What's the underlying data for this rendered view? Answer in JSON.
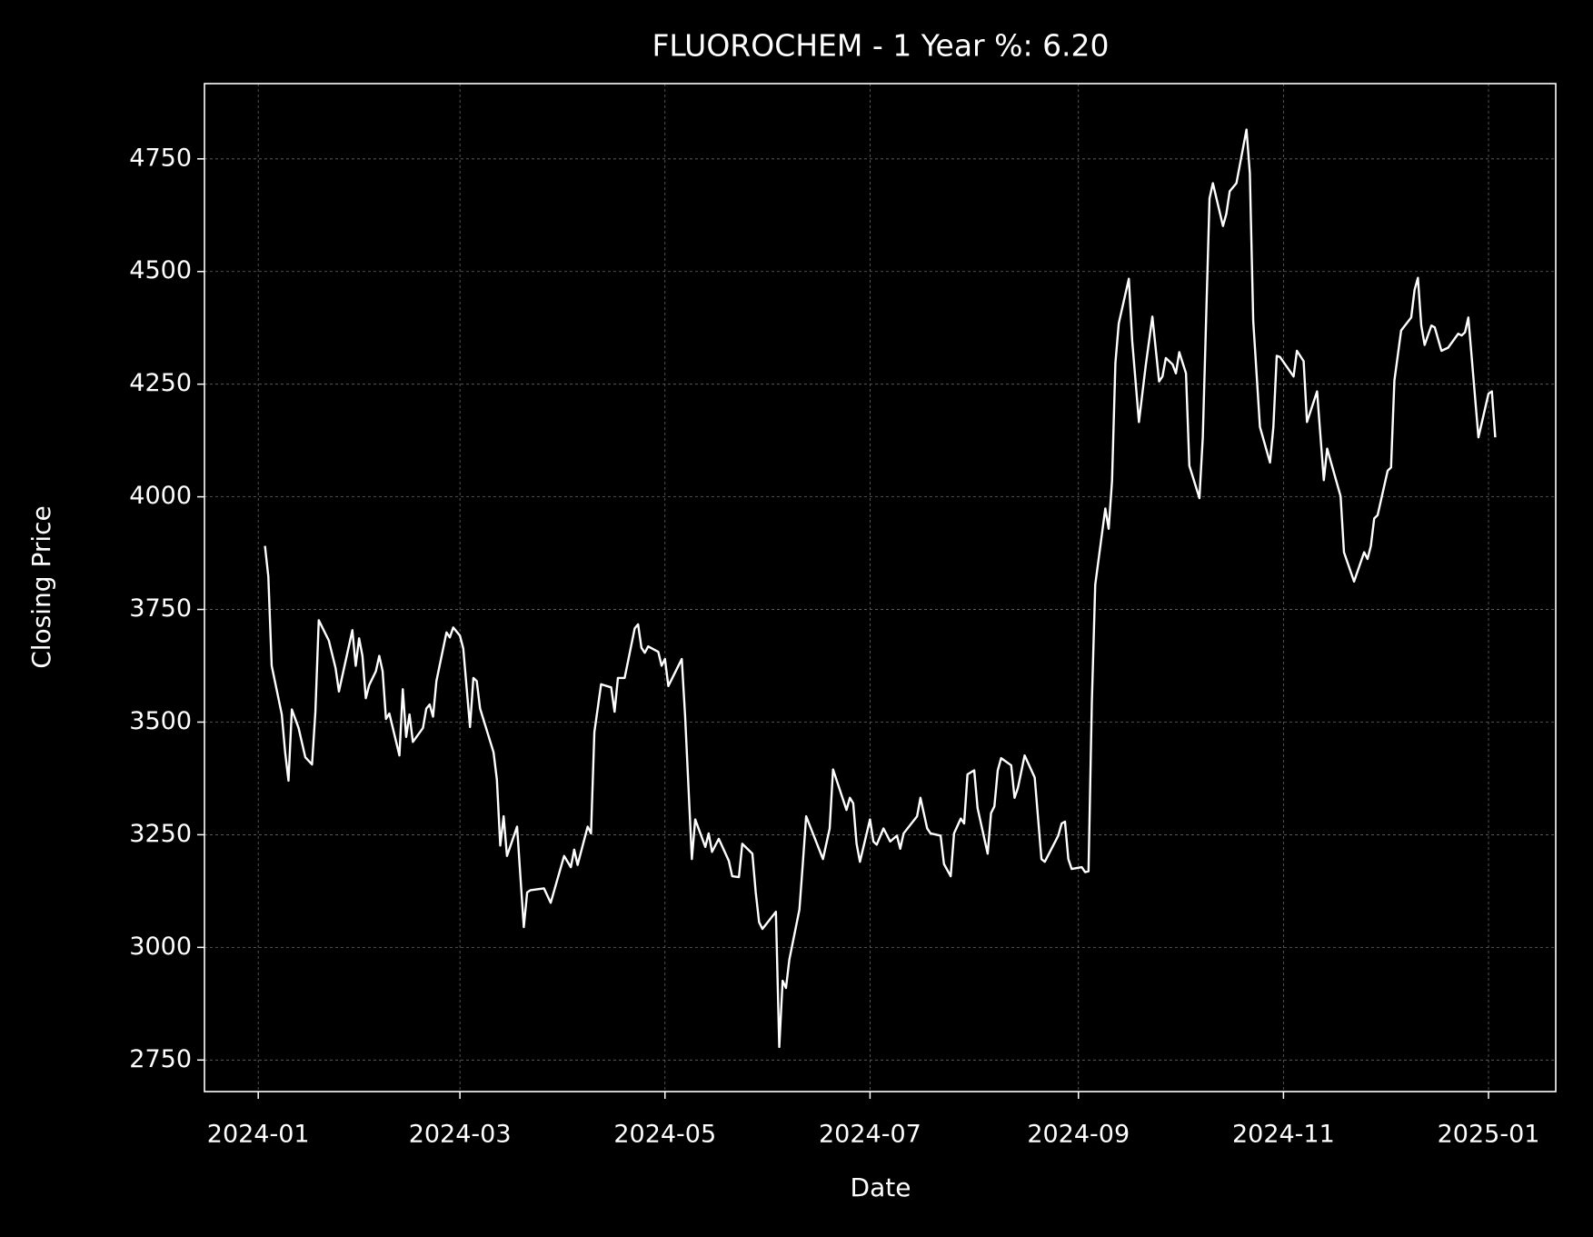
{
  "chart_data": {
    "type": "line",
    "title": "FLUOROCHEM - 1 Year %: 6.20",
    "x_label": "Date",
    "y_label": "Closing Price",
    "color": "#ffffff",
    "grid": true,
    "xlim": [
      -16,
      386
    ],
    "ylim": [
      2680,
      4917
    ],
    "xticks": [
      {
        "value": 0,
        "label": "2024-01"
      },
      {
        "value": 60,
        "label": "2024-03"
      },
      {
        "value": 121,
        "label": "2024-05"
      },
      {
        "value": 182,
        "label": "2024-07"
      },
      {
        "value": 244,
        "label": "2024-09"
      },
      {
        "value": 305,
        "label": "2024-11"
      },
      {
        "value": 366,
        "label": "2025-01"
      }
    ],
    "yticks": [
      2750,
      3000,
      3250,
      3500,
      3750,
      4000,
      4250,
      4500,
      4750
    ],
    "x": [
      2,
      3,
      4,
      7,
      8,
      9,
      10,
      12,
      14,
      16,
      17,
      18,
      21,
      23,
      24,
      26,
      28,
      29,
      30,
      31,
      32,
      33,
      35,
      36,
      37,
      38,
      39,
      42,
      43,
      44,
      45,
      46,
      49,
      50,
      51,
      52,
      53,
      56,
      57,
      58,
      60,
      61,
      63,
      64,
      65,
      66,
      70,
      71,
      72,
      73,
      74,
      77,
      79,
      80,
      81,
      85,
      87,
      91,
      93,
      94,
      95,
      98,
      99,
      100,
      102,
      105,
      106,
      107,
      109,
      112,
      113,
      114,
      115,
      116,
      119,
      120,
      121,
      122,
      126,
      127,
      129,
      130,
      133,
      134,
      135,
      137,
      140,
      141,
      143,
      144,
      147,
      148,
      149,
      150,
      154,
      155,
      156,
      157,
      158,
      161,
      162,
      163,
      168,
      170,
      171,
      175,
      176,
      177,
      178,
      179,
      182,
      183,
      184,
      186,
      188,
      190,
      191,
      192,
      196,
      197,
      199,
      200,
      203,
      204,
      206,
      207,
      209,
      210,
      211,
      213,
      214,
      217,
      218,
      219,
      220,
      221,
      224,
      225,
      226,
      228,
      231,
      233,
      234,
      238,
      239,
      240,
      241,
      242,
      245,
      246,
      247,
      248,
      249,
      252,
      253,
      254,
      255,
      256,
      259,
      260,
      262,
      264,
      266,
      268,
      269,
      270,
      272,
      273,
      274,
      276,
      277,
      280,
      281,
      283,
      284,
      287,
      288,
      289,
      291,
      294,
      295,
      296,
      298,
      301,
      302,
      303,
      304,
      308,
      309,
      311,
      312,
      315,
      317,
      318,
      322,
      323,
      326,
      329,
      330,
      331,
      332,
      333,
      336,
      337,
      338,
      340,
      343,
      344,
      345,
      346,
      347,
      349,
      350,
      352,
      354,
      357,
      358,
      359,
      360,
      363,
      366,
      367,
      368
    ],
    "values": [
      3891,
      3823,
      3625,
      3517,
      3433,
      3370,
      3528,
      3487,
      3422,
      3406,
      3523,
      3726,
      3681,
      3620,
      3568,
      3636,
      3704,
      3625,
      3686,
      3647,
      3553,
      3582,
      3613,
      3647,
      3613,
      3507,
      3519,
      3426,
      3573,
      3467,
      3517,
      3456,
      3487,
      3530,
      3539,
      3512,
      3591,
      3699,
      3688,
      3710,
      3692,
      3663,
      3489,
      3598,
      3591,
      3530,
      3433,
      3372,
      3226,
      3291,
      3203,
      3268,
      3045,
      3122,
      3127,
      3131,
      3099,
      3203,
      3178,
      3217,
      3183,
      3268,
      3253,
      3478,
      3584,
      3577,
      3523,
      3598,
      3598,
      3708,
      3717,
      3665,
      3654,
      3668,
      3656,
      3625,
      3640,
      3580,
      3640,
      3512,
      3196,
      3284,
      3223,
      3253,
      3212,
      3241,
      3192,
      3158,
      3156,
      3230,
      3208,
      3122,
      3056,
      3041,
      3079,
      2779,
      2926,
      2910,
      2973,
      3084,
      3185,
      3291,
      3196,
      3264,
      3395,
      3305,
      3332,
      3320,
      3230,
      3190,
      3284,
      3235,
      3228,
      3264,
      3235,
      3248,
      3219,
      3253,
      3291,
      3332,
      3264,
      3253,
      3248,
      3185,
      3158,
      3253,
      3286,
      3275,
      3384,
      3393,
      3309,
      3208,
      3298,
      3313,
      3393,
      3420,
      3404,
      3332,
      3354,
      3426,
      3377,
      3196,
      3190,
      3248,
      3275,
      3279,
      3196,
      3174,
      3178,
      3167,
      3169,
      3546,
      3805,
      3974,
      3929,
      4035,
      4297,
      4385,
      4484,
      4346,
      4166,
      4290,
      4400,
      4256,
      4267,
      4308,
      4294,
      4274,
      4321,
      4274,
      4069,
      3997,
      4132,
      4662,
      4696,
      4601,
      4628,
      4678,
      4696,
      4815,
      4718,
      4391,
      4155,
      4076,
      4155,
      4313,
      4310,
      4267,
      4324,
      4301,
      4166,
      4234,
      4037,
      4107,
      4001,
      3877,
      3812,
      3877,
      3862,
      3891,
      3952,
      3959,
      4058,
      4065,
      4258,
      4369,
      4398,
      4459,
      4486,
      4380,
      4337,
      4380,
      4376,
      4324,
      4331,
      4362,
      4358,
      4365,
      4398,
      4132,
      4229,
      4234,
      4132
    ]
  }
}
